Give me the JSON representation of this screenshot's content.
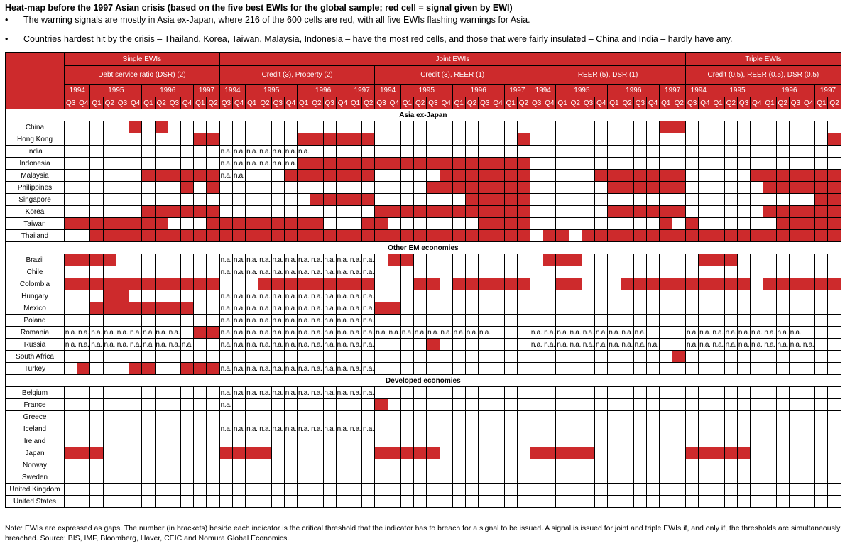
{
  "title": "Heat-map before the 1997 Asian crisis (based on the five best EWIs for the global sample; red cell = signal given by EWI)",
  "bullets": [
    "The warning signals are mostly in Asia ex-Japan, where 216 of the 600 cells are red, with all five EWIs flashing warnings for Asia.",
    "Countries hardest hit by the crisis – Thailand, Korea, Taiwan, Malaysia, Indonesia – have the most red cells, and those that were fairly insulated – China and India – hardly have any."
  ],
  "bullet_symbol": "•",
  "colors": {
    "signal": "#cd2a2c",
    "no_signal": "#ffffff"
  },
  "chart_data": {
    "type": "heatmap",
    "title": "Heat-map before the 1997 Asian crisis (based on the five best EWIs for the global sample; red cell = signal given by EWI)",
    "legend": "1 = red cell (signal given by EWI), 0 = no signal, n = n.a.",
    "na_label": "n.a.",
    "categories": [
      {
        "name": "Single EWIs",
        "indicators": [
          "Debt service ratio (DSR) (2)"
        ]
      },
      {
        "name": "Joint EWIs",
        "indicators": [
          "Credit (3), Property (2)",
          "Credit (3), REER (1)",
          "REER (5), DSR (1)"
        ]
      },
      {
        "name": "Triple EWIs",
        "indicators": [
          "Credit (0.5), REER (0.5), DSR (0.5)"
        ]
      }
    ],
    "years": [
      {
        "label": "1994",
        "quarters": 2
      },
      {
        "label": "1995",
        "quarters": 4
      },
      {
        "label": "1996",
        "quarters": 4
      },
      {
        "label": "1997",
        "quarters": 2
      }
    ],
    "quarters": [
      "Q3",
      "Q4",
      "Q1",
      "Q2",
      "Q3",
      "Q4",
      "Q1",
      "Q2",
      "Q3",
      "Q4",
      "Q1",
      "Q2"
    ],
    "sections": [
      {
        "name": "Asia ex-Japan",
        "rows": [
          {
            "country": "China",
            "cells": [
              "000001010000",
              "000000000000",
              "000000000000",
              "000000000011",
              "000000000000"
            ]
          },
          {
            "country": "Hong Kong",
            "cells": [
              "000000000011",
              "000000111111",
              "000000000001",
              "000000000000",
              "000000000001"
            ]
          },
          {
            "country": "India",
            "cells": [
              "000000000000",
              "nnnnnnn00000",
              "000000000000",
              "000000000000",
              "000000000000"
            ]
          },
          {
            "country": "Indonesia",
            "cells": [
              "000000000000",
              "nnnnnn111111",
              "111111111111",
              "000000000000",
              "000000000000"
            ]
          },
          {
            "country": "Malaysia",
            "cells": [
              "000000111111",
              "nn0001111111",
              "000001111111",
              "000001111111",
              "000001111111"
            ]
          },
          {
            "country": "Philippines",
            "cells": [
              "000000000101",
              "000000000000",
              "000011111111",
              "000000111111",
              "000000111111"
            ]
          },
          {
            "country": "Singapore",
            "cells": [
              "000000000000",
              "000000011111",
              "000000011111",
              "000000000000",
              "000000000011"
            ]
          },
          {
            "country": "Korea",
            "cells": [
              "000000111111",
              "000000000000",
              "111111111111",
              "000000111111",
              "000000111111"
            ]
          },
          {
            "country": "Taiwan",
            "cells": [
              "111111110001",
              "111111110001",
              "100000001111",
              "000000000010",
              "100000011111"
            ]
          },
          {
            "country": "Thailand",
            "cells": [
              "001111111111",
              "111111111111",
              "111111111111",
              "011011111111",
              "111111111111"
            ]
          }
        ]
      },
      {
        "name": "Other EM economies",
        "rows": [
          {
            "country": "Brazil",
            "cells": [
              "111100000000",
              "nnnnnnnnnnnn",
              "011000000000",
              "011100000000",
              "011100000000"
            ]
          },
          {
            "country": "Chile",
            "cells": [
              "000000000000",
              "nnnnnnnnnnnn",
              "000000000000",
              "000000000000",
              "000000000000"
            ]
          },
          {
            "country": "Colombia",
            "cells": [
              "111111111111",
              "000111111111",
              "000110111111",
              "001100011111",
              "111110111111"
            ]
          },
          {
            "country": "Hungary",
            "cells": [
              "000110000000",
              "nnnnnnnnnnnn",
              "000000000000",
              "000000000000",
              "000000000000"
            ]
          },
          {
            "country": "Mexico",
            "cells": [
              "001111111100",
              "nnnnnnnnnnnn",
              "110000000000",
              "000000000000",
              "000000000000"
            ]
          },
          {
            "country": "Poland",
            "cells": [
              "000000000000",
              "nnnnnnnnnnnn",
              "000000000000",
              "000000000000",
              "000000000000"
            ]
          },
          {
            "country": "Romania",
            "cells": [
              "nnnnnnnnn011",
              "nnnnnnnnnnnn",
              "nnnnnnnnn000",
              "nnnnnnnnn000",
              "nnnnnnnnn000"
            ]
          },
          {
            "country": "Russia",
            "cells": [
              "nnnnnnnnnn00",
              "nnnnnnnnnnnn",
              "000010000000",
              "nnnnnnnnnn00",
              "nnnnnnnnnn00"
            ]
          },
          {
            "country": "South Africa",
            "cells": [
              "000000000000",
              "000000000000",
              "000000000000",
              "000000000001",
              "000000000000"
            ]
          },
          {
            "country": "Turkey",
            "cells": [
              "010001100111",
              "nnnnnnnnnnnn",
              "000000000000",
              "000000000000",
              "000000000000"
            ]
          }
        ]
      },
      {
        "name": "Developed economies",
        "rows": [
          {
            "country": "Belgium",
            "cells": [
              "000000000000",
              "nnnnnnnnnnnn",
              "000000000000",
              "000000000000",
              "000000000000"
            ]
          },
          {
            "country": "France",
            "cells": [
              "000000000000",
              "n00000000000",
              "100000000000",
              "000000000000",
              "000000000000"
            ]
          },
          {
            "country": "Greece",
            "cells": [
              "000000000000",
              "000000000000",
              "000000000000",
              "000000000000",
              "000000000000"
            ]
          },
          {
            "country": "Iceland",
            "cells": [
              "000000000000",
              "nnnnnnnnnnnn",
              "000000000000",
              "000000000000",
              "000000000000"
            ]
          },
          {
            "country": "Ireland",
            "cells": [
              "000000000000",
              "000000000000",
              "000000000000",
              "000000000000",
              "000000000000"
            ]
          },
          {
            "country": "Japan",
            "cells": [
              "111000000000",
              "111100000000",
              "111110000000",
              "111110000000",
              "111110000000"
            ]
          },
          {
            "country": "Norway",
            "cells": [
              "000000000000",
              "000000000000",
              "000000000000",
              "000000000000",
              "000000000000"
            ]
          },
          {
            "country": "Sweden",
            "cells": [
              "000000000000",
              "000000000000",
              "000000000000",
              "000000000000",
              "000000000000"
            ]
          },
          {
            "country": "United Kingdom",
            "cells": [
              "000000000000",
              "000000000000",
              "000000000000",
              "000000000000",
              "000000000000"
            ]
          },
          {
            "country": "United States",
            "cells": [
              "000000000000",
              "000000000000",
              "000000000000",
              "000000000000",
              "000000000000"
            ]
          }
        ]
      }
    ]
  },
  "note": "Note: EWIs are expressed as gaps. The number (in brackets) beside each indicator is the critical threshold that the indicator has to breach for a signal to be issued. A signal is issued for joint and triple EWIs if, and only if, the thresholds are simultaneously breached.  Source: BIS, IMF, Bloomberg, Haver, CEIC and Nomura Global Economics."
}
